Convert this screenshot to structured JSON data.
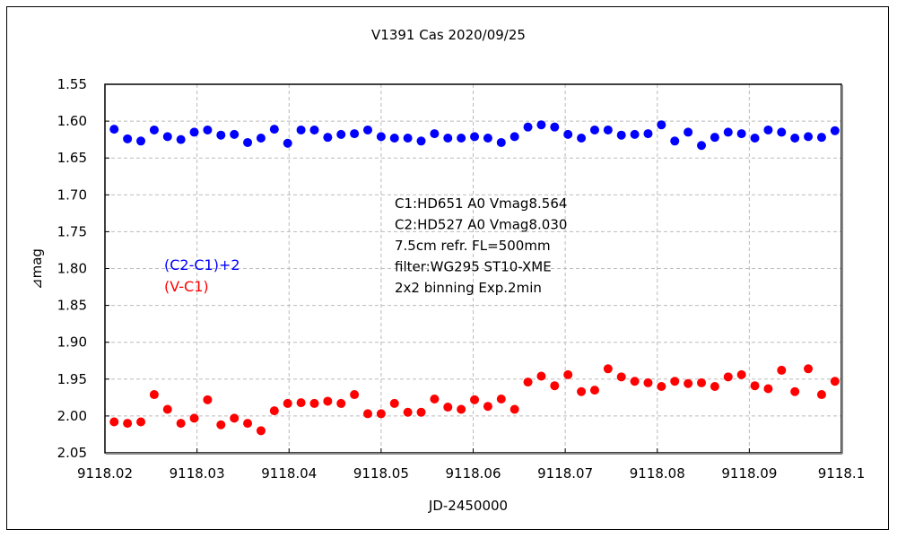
{
  "chart_data": {
    "type": "scatter",
    "title": "V1391 Cas   2020/09/25",
    "xlabel": "JD-2450000",
    "ylabel": "⊿mag",
    "xlim": [
      9118.02,
      9118.1
    ],
    "ylim": [
      1.55,
      2.05
    ],
    "y_inverted": true,
    "grid": true,
    "xticks": [
      "9118.02",
      "9118.03",
      "9118.04",
      "9118.05",
      "9118.06",
      "9118.07",
      "9118.08",
      "9118.09",
      "9118.1"
    ],
    "xtick_values": [
      9118.02,
      9118.03,
      9118.04,
      9118.05,
      9118.06,
      9118.07,
      9118.08,
      9118.09,
      9118.1
    ],
    "yticks": [
      "1.55",
      "1.60",
      "1.65",
      "1.70",
      "1.75",
      "1.80",
      "1.85",
      "1.90",
      "1.95",
      "2.00",
      "2.05"
    ],
    "ytick_values": [
      1.55,
      1.6,
      1.65,
      1.7,
      1.75,
      1.8,
      1.85,
      1.9,
      1.95,
      2.0,
      2.05
    ],
    "annotations": [
      "C1:HD651 A0 Vmag8.564",
      "C2:HD527 A0  Vmag8.030",
      "7.5cm refr. FL=500mm",
      "filter:WG295  ST10-XME",
      "2x2 binning  Exp.2min"
    ],
    "legend_placement": "left-middle",
    "x": [
      9118.021,
      9118.02245,
      9118.0239,
      9118.02535,
      9118.0268,
      9118.02825,
      9118.0297,
      9118.03115,
      9118.0326,
      9118.03405,
      9118.0355,
      9118.03695,
      9118.0384,
      9118.03985,
      9118.0413,
      9118.04275,
      9118.0442,
      9118.04565,
      9118.0471,
      9118.04855,
      9118.05,
      9118.05145,
      9118.0529,
      9118.05435,
      9118.0558,
      9118.05725,
      9118.0587,
      9118.06015,
      9118.0616,
      9118.06305,
      9118.0645,
      9118.06595,
      9118.0674,
      9118.06885,
      9118.0703,
      9118.07175,
      9118.0732,
      9118.07465,
      9118.0761,
      9118.07755,
      9118.079,
      9118.08045,
      9118.0819,
      9118.08335,
      9118.0848,
      9118.08625,
      9118.0877,
      9118.08915,
      9118.0906,
      9118.09205,
      9118.0935,
      9118.09495,
      9118.0964,
      9118.09785,
      9118.0993
    ],
    "series": [
      {
        "name": "(C2-C1)+2",
        "color": "#0000ff",
        "values": [
          1.611,
          1.624,
          1.627,
          1.612,
          1.621,
          1.625,
          1.615,
          1.612,
          1.619,
          1.618,
          1.629,
          1.623,
          1.611,
          1.63,
          1.612,
          1.612,
          1.622,
          1.618,
          1.617,
          1.612,
          1.621,
          1.623,
          1.623,
          1.627,
          1.617,
          1.623,
          1.623,
          1.621,
          1.623,
          1.629,
          1.621,
          1.608,
          1.605,
          1.608,
          1.618,
          1.623,
          1.612,
          1.612,
          1.619,
          1.618,
          1.617,
          1.605,
          1.627,
          1.615,
          1.633,
          1.622,
          1.615,
          1.617,
          1.623,
          1.612,
          1.615,
          1.623,
          1.621,
          1.622,
          1.613
        ]
      },
      {
        "name": "(V-C1)",
        "color": "#ff0000",
        "values": [
          2.008,
          2.01,
          2.008,
          1.971,
          1.991,
          2.01,
          2.003,
          1.978,
          2.012,
          2.003,
          2.01,
          2.02,
          1.993,
          1.983,
          1.982,
          1.983,
          1.98,
          1.983,
          1.971,
          1.997,
          1.997,
          1.983,
          1.995,
          1.995,
          1.977,
          1.988,
          1.991,
          1.978,
          1.987,
          1.977,
          1.991,
          1.954,
          1.946,
          1.959,
          1.944,
          1.967,
          1.965,
          1.936,
          1.947,
          1.953,
          1.955,
          1.96,
          1.953,
          1.956,
          1.955,
          1.96,
          1.947,
          1.944,
          1.959,
          1.963,
          1.938,
          1.967,
          1.936,
          1.971,
          1.953
        ]
      }
    ]
  }
}
